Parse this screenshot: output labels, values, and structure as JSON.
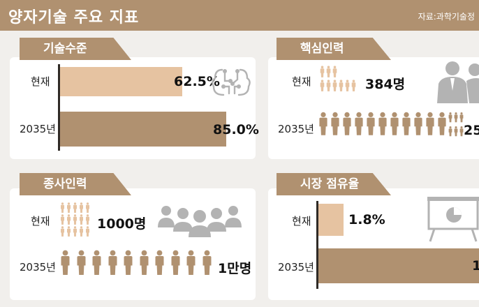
{
  "header": {
    "title": "양자기술 주요 지표",
    "source": "자료:과학기술정"
  },
  "colors": {
    "banner": "#b09170",
    "bar_now": "#e6c3a1",
    "bar_future": "#b09170",
    "icon": "#b3b3b3"
  },
  "panels": {
    "tech": {
      "tag": "기술수준",
      "row1_label": "현재",
      "row2_label": "2035년",
      "row1_value": "62.5%",
      "row2_value": "85.0%"
    },
    "core": {
      "tag": "핵심인력",
      "row1_label": "현재",
      "row2_label": "2035년",
      "row1_value": "384명",
      "row2_value": "25"
    },
    "workforce": {
      "tag": "종사인력",
      "row1_label": "현재",
      "row2_label": "2035년",
      "row1_value": "1000명",
      "row2_value": "1만명"
    },
    "market": {
      "tag": "시장 점유율",
      "row1_label": "현재",
      "row2_label": "2035년",
      "row1_value": "1.8%",
      "row2_value": "1"
    }
  },
  "chart_data": [
    {
      "type": "bar",
      "title": "기술수준",
      "unit": "%",
      "categories": [
        "현재",
        "2035년"
      ],
      "values": [
        62.5,
        85.0
      ]
    },
    {
      "type": "pictograph",
      "title": "핵심인력",
      "unit": "명",
      "categories": [
        "현재",
        "2035년"
      ],
      "values": [
        384,
        null
      ]
    },
    {
      "type": "pictograph",
      "title": "종사인력",
      "unit": "명",
      "categories": [
        "현재",
        "2035년"
      ],
      "values": [
        1000,
        10000
      ]
    },
    {
      "type": "bar",
      "title": "시장 점유율",
      "unit": "%",
      "categories": [
        "현재",
        "2035년"
      ],
      "values": [
        1.8,
        null
      ]
    }
  ],
  "icons": {
    "tech": "circuit-brain-icon",
    "core": "businessmen-icon",
    "workforce": "group-people-icon",
    "market": "presentation-board-icon"
  }
}
